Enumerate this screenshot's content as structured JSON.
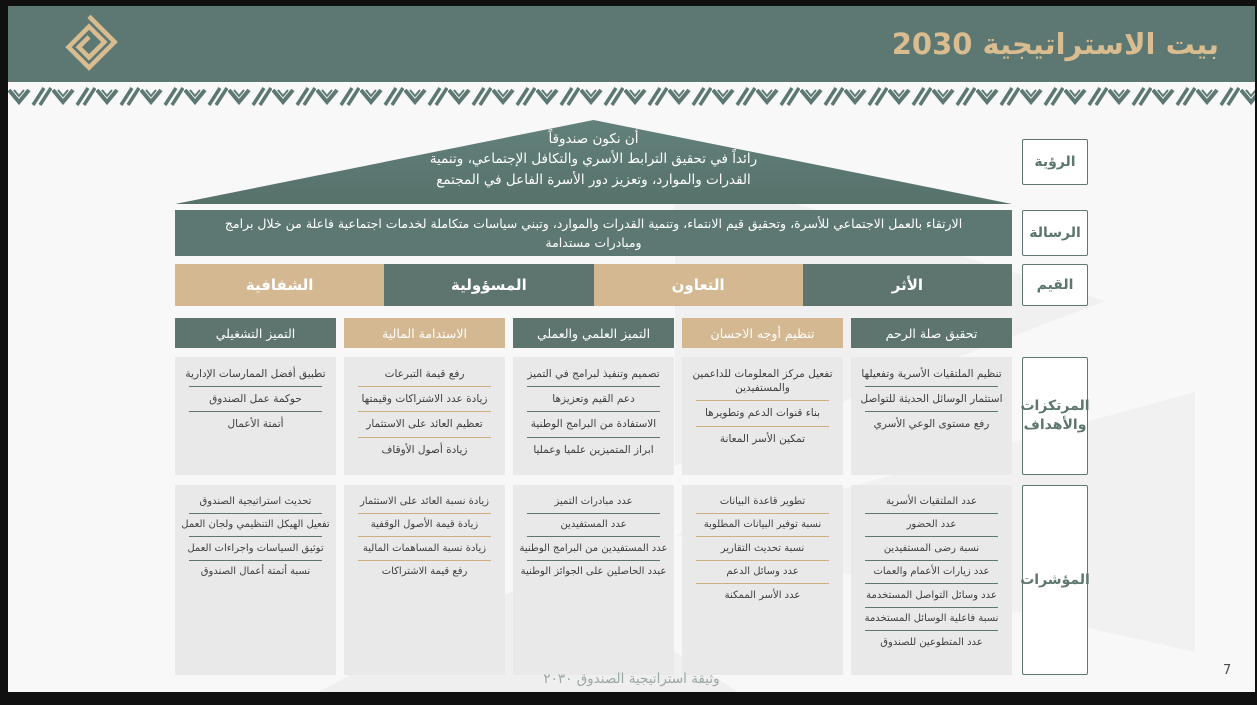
{
  "header": {
    "title": "بيت الاستراتيجية 2030",
    "logo": "kufic-diamond-logo"
  },
  "rows": {
    "vision": {
      "label": "الرؤية",
      "lines": [
        "أن نكون صندوقاً",
        "رائداً في تحقيق الترابط الأسري والتكافل الإجتماعي، وتنمية",
        "القدرات والموارد، وتعزيز دور الأسرة الفاعل في المجتمع"
      ]
    },
    "mission": {
      "label": "الرسالة",
      "text": "الارتقاء بالعمل الاجتماعي للأسرة، وتحقيق قيم الانتماء، وتنمية القدرات والموارد، وتبني سياسات متكاملة لخدمات اجتماعية فاعلة من خلال برامج ومبادرات مستدامة"
    },
    "values": {
      "label": "القيم",
      "items": [
        {
          "label": "الأثر",
          "color": "teal"
        },
        {
          "label": "التعاون",
          "color": "tan"
        },
        {
          "label": "المسؤولية",
          "color": "teal"
        },
        {
          "label": "الشفافية",
          "color": "tan"
        }
      ]
    },
    "pillars": {
      "label": "المرتكزات والأهداف",
      "indicators_label": "المؤشرات",
      "columns": [
        {
          "title": "تحقيق صلة الرحم",
          "color": "teal",
          "goals": [
            "تنظيم الملتقيات الأسرية وتفعيلها",
            "استثمار الوسائل الحديثة للتواصل",
            "رفع مستوى الوعي الأسري"
          ],
          "indicators": [
            "عدد الملتقيات الأسرية",
            "عدد الحضور",
            "نسبة رضى المستفيدين",
            "عدد زيارات الأعمام والعمات",
            "عدد وسائل التواصل المستخدمة",
            "نسبة فاعلية الوسائل المستخدمة",
            "عدد المتطوعين للصندوق"
          ]
        },
        {
          "title": "تنظيم أوجه الاحسان",
          "color": "tan",
          "goals": [
            "تفعيل مركز المعلومات للداعمين والمستفيدين",
            "بناء قنوات الدعم وتطويرها",
            "تمكين الأسر المعانة"
          ],
          "indicators": [
            "تطوير قاعدة البيانات",
            "نسبة توفير البيانات المطلوبة",
            "نسبة تحديث التقارير",
            "عدد وسائل الدعم",
            "عدد الأسر الممكنة"
          ]
        },
        {
          "title": "التميز العلمي والعملي",
          "color": "teal",
          "goals": [
            "تصميم وتنفيذ لبرامج في التميز",
            "دعم القيم وتعزيزها",
            "الاستفادة من البرامج الوطنية",
            "ابراز المتميزين علميا وعمليا"
          ],
          "indicators": [
            "عدد مبادرات التميز",
            "عدد المستفيدين",
            "عدد المستفيدين من البرامج الوطنية",
            "عبدد الحاصلين على الجوائز الوطنية"
          ]
        },
        {
          "title": "الاستدامة المالية",
          "color": "tan",
          "goals": [
            "رفع قيمة التبرعات",
            "زيادة عدد الاشتراكات وقيمتها",
            "تعظيم العائد على الاستثمار",
            "زيادة أصول الأوقاف"
          ],
          "indicators": [
            "زيادة نسبة العائد على الاستثمار",
            "زيادة قيمة الأصول الوقفية",
            "زيادة نسبة المساهمات المالية",
            "رفع قيمة الاشتراكات"
          ]
        },
        {
          "title": "التميز التشغيلي",
          "color": "teal",
          "goals": [
            "تطبيق أفضل الممارسات الإدارية",
            "حوكمة عمل الصندوق",
            "أتمتة الأعمال"
          ],
          "indicators": [
            "تحديث استراتيجية الصندوق",
            "تفعيل الهيكل التنظيمي ولجان العمل",
            "توثيق السياسات واجراءات العمل",
            "نسبة أتمتة أعمال الصندوق"
          ]
        }
      ]
    }
  },
  "footer": {
    "doc_title": "وثيقة استراتيجية الصندوق ٢٠٣٠",
    "page_number": "7"
  },
  "colors": {
    "header_teal": "#5d7873",
    "box_teal": "#5e756f",
    "box_tan": "#d3b892",
    "gold_title": "#d9bc8f",
    "item_bg": "#e9e9e9",
    "page_bg": "#f8f8f8"
  }
}
